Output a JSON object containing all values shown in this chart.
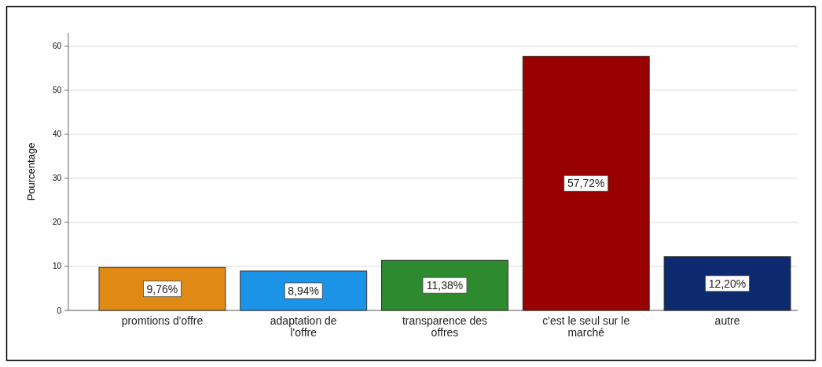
{
  "chart_data": {
    "type": "bar",
    "ylabel": "Pourcentage",
    "categories": [
      "promtions d'offre",
      "adaptation de l'offre",
      "transparence des offres",
      "c'est le seul sur le marché",
      "autre"
    ],
    "values": [
      9.76,
      8.94,
      11.38,
      57.72,
      12.2
    ],
    "colors": [
      "#e08a16",
      "#1b93e6",
      "#2e8a2e",
      "#990000",
      "#0d2a6e"
    ],
    "value_labels": [
      "9,76%",
      "8,94%",
      "11,38%",
      "57,72%",
      "12,20%"
    ],
    "ylim": [
      0,
      63
    ],
    "yticks": [
      0,
      10,
      20,
      30,
      40,
      50,
      60
    ],
    "grid": "y"
  }
}
